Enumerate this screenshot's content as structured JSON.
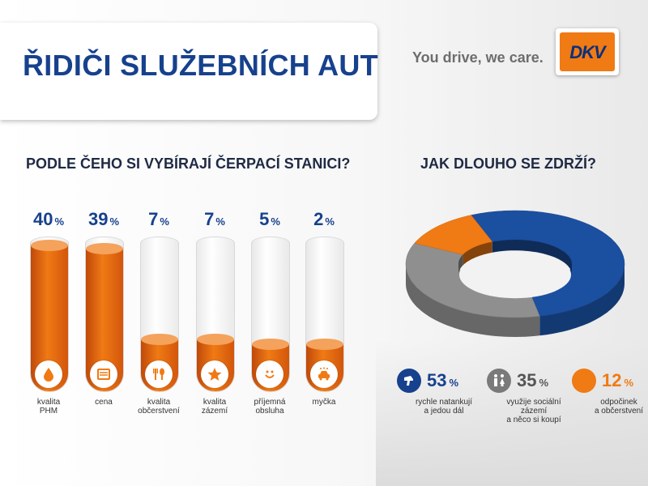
{
  "header": {
    "title": "ŘIDIČI SLUŽEBNÍCH AUT",
    "tagline": "You drive, we care.",
    "logo_text": "DKV"
  },
  "colors": {
    "brand_blue": "#17418d",
    "orange": "#f07a14",
    "grey": "#8f8f8f"
  },
  "chart_data": [
    {
      "type": "bar",
      "title": "PODLE ČEHO SI VYBÍRAJÍ ČERPACÍ STANICI?",
      "categories": [
        [
          "kvalita",
          "PHM"
        ],
        [
          "cena"
        ],
        [
          "kvalita",
          "občerstvení"
        ],
        [
          "kvalita",
          "zázemí"
        ],
        [
          "příjemná",
          "obsluha"
        ],
        [
          "myčka"
        ]
      ],
      "values": [
        40,
        39,
        7,
        7,
        5,
        2
      ],
      "value_labels": [
        "40",
        "39",
        "7",
        "7",
        "5",
        "2"
      ],
      "unit": "%",
      "icons": [
        "drop-icon",
        "card-icon",
        "cutlery-icon",
        "star-icon",
        "smile-icon",
        "car-wash-icon"
      ],
      "color": "#f07a14"
    },
    {
      "type": "pie",
      "title": "JAK DLOUHO SE ZDRŽÍ?",
      "slices": [
        {
          "label": [
            "rychle natankují",
            "a jedou dál"
          ],
          "value": 53,
          "value_label": "53",
          "color": "#1b4fa0",
          "icon": "fuel-nozzle-icon"
        },
        {
          "label": [
            "využije sociální zázemí",
            "a něco si koupí"
          ],
          "value": 35,
          "value_label": "35",
          "color": "#8f8f8f",
          "icon": "restroom-icon"
        },
        {
          "label": [
            "odpočinek",
            "a občerstvení"
          ],
          "value": 12,
          "value_label": "12",
          "color": "#f07a14",
          "icon": "cutlery-icon"
        }
      ],
      "unit": "%"
    }
  ]
}
